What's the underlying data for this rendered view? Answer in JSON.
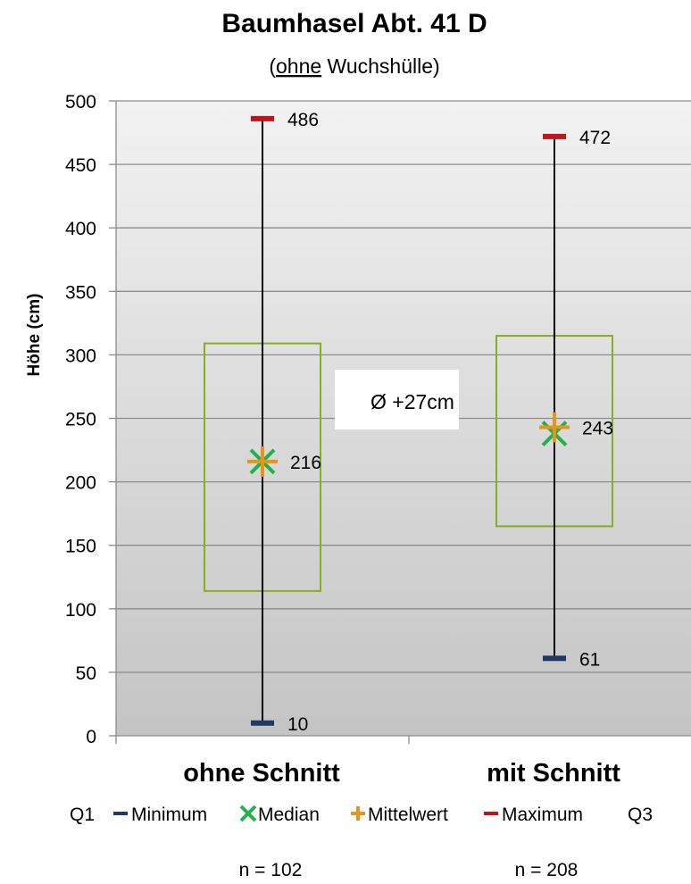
{
  "chart_data": {
    "type": "boxplot",
    "title": "Baumhasel Abt. 41 D",
    "subtitle_underlined": "ohne",
    "subtitle_rest": " Wuchshülle)",
    "subtitle_open": "(",
    "ylabel": "Höhe (cm)",
    "ylim": [
      0,
      500
    ],
    "yticks": [
      0,
      50,
      100,
      150,
      200,
      250,
      300,
      350,
      400,
      450,
      500
    ],
    "grid": true,
    "categories": [
      "ohne Schnitt",
      "mit Schnitt"
    ],
    "groups": [
      {
        "category": "ohne Schnitt",
        "min": 10,
        "q1": 114,
        "median": 216,
        "mean": 216,
        "q3": 309,
        "max": 486,
        "n_label": "n = 102"
      },
      {
        "category": "mit Schnitt",
        "min": 61,
        "q1": 165,
        "median": 238,
        "mean": 243,
        "q3": 315,
        "max": 472,
        "n_label": "n = 208"
      }
    ],
    "value_labels": {
      "ohne Schnitt": {
        "max": "486",
        "mean": "216",
        "min": "10"
      },
      "mit Schnitt": {
        "max": "472",
        "mean": "243",
        "min": "61"
      }
    },
    "annotation": "Ø +27cm",
    "legend": {
      "placement": "bottom",
      "left_label": "Q1",
      "right_label": "Q3",
      "items": [
        {
          "label": "Minimum",
          "color": "#1f3864",
          "marker": "dash"
        },
        {
          "label": "Median",
          "color": "#22b14c",
          "marker": "x"
        },
        {
          "label": "Mittelwert",
          "color": "#e8941a",
          "marker": "plus"
        },
        {
          "label": "Maximum",
          "color": "#c0141c",
          "marker": "dash"
        }
      ]
    },
    "colors": {
      "box": "#8aac1e",
      "whisker": "#000000",
      "min": "#1f3864",
      "median": "#22b14c",
      "mean": "#e8941a",
      "max": "#c0141c"
    }
  }
}
